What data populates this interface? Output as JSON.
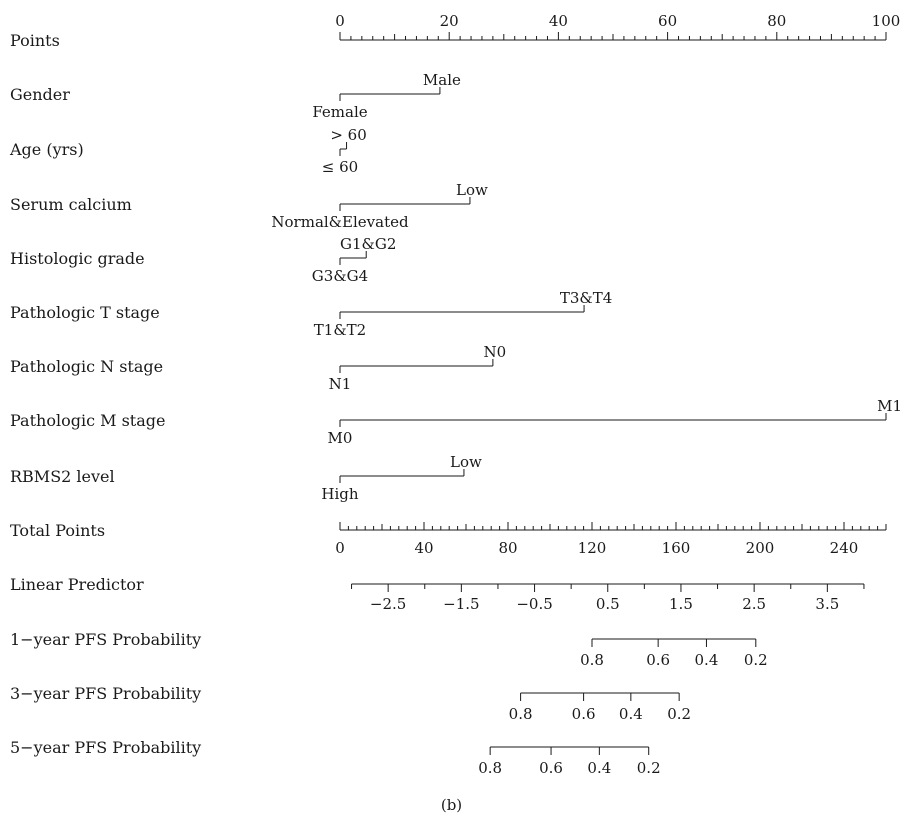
{
  "caption": "(b)",
  "chart_data": {
    "type": "nomogram",
    "points_axis": {
      "label": "Points",
      "range": [
        0,
        100
      ],
      "major_ticks": [
        0,
        20,
        40,
        60,
        80,
        100
      ],
      "minor_step": 2
    },
    "variables": [
      {
        "label": "Gender",
        "levels": [
          {
            "name": "Female",
            "points": 0,
            "side": "below"
          },
          {
            "name": "Male",
            "points": 18.3,
            "side": "above"
          }
        ]
      },
      {
        "label": "Age (yrs)",
        "levels": [
          {
            "name": "≤ 60",
            "points": 0,
            "side": "below"
          },
          {
            "name": "> 60",
            "points": 1.2,
            "side": "above"
          }
        ]
      },
      {
        "label": "Serum calcium",
        "levels": [
          {
            "name": "Normal&Elevated",
            "points": 0,
            "side": "below"
          },
          {
            "name": "Low",
            "points": 23.8,
            "side": "above"
          }
        ]
      },
      {
        "label": "Histologic grade",
        "levels": [
          {
            "name": "G3&G4",
            "points": 0,
            "side": "below"
          },
          {
            "name": "G1&G2",
            "points": 4.8,
            "side": "above"
          }
        ]
      },
      {
        "label": "Pathologic T stage",
        "levels": [
          {
            "name": "T1&T2",
            "points": 0,
            "side": "below"
          },
          {
            "name": "T3&T4",
            "points": 44.7,
            "side": "above"
          }
        ]
      },
      {
        "label": "Pathologic N stage",
        "levels": [
          {
            "name": "N1",
            "points": 0,
            "side": "below"
          },
          {
            "name": "N0",
            "points": 28.0,
            "side": "above"
          }
        ]
      },
      {
        "label": "Pathologic M stage",
        "levels": [
          {
            "name": "M0",
            "points": 0,
            "side": "below"
          },
          {
            "name": "M1",
            "points": 100,
            "side": "above"
          }
        ]
      },
      {
        "label": "RBMS2 level",
        "levels": [
          {
            "name": "High",
            "points": 0,
            "side": "below"
          },
          {
            "name": "Low",
            "points": 22.7,
            "side": "above"
          }
        ]
      }
    ],
    "total_points_axis": {
      "label": "Total Points",
      "range": [
        0,
        260
      ],
      "major_ticks": [
        0,
        40,
        80,
        120,
        160,
        200,
        240
      ],
      "minor_step": 4
    },
    "linear_predictor_axis": {
      "label": "Linear Predictor",
      "range": [
        -3.0,
        4.0
      ],
      "total_points_at_range": [
        5.5,
        249.5
      ],
      "major_ticks": [
        -2.5,
        -1.5,
        -0.5,
        0.5,
        1.5,
        2.5,
        3.5
      ],
      "tick_labels": [
        "−2.5",
        "−1.5",
        "−0.5",
        "0.5",
        "1.5",
        "2.5",
        "3.5"
      ],
      "minor_step": 0.5
    },
    "probability_axes": [
      {
        "label": "1−year PFS Probability",
        "ticks": [
          {
            "label": "0.8",
            "total_points": 120.0
          },
          {
            "label": "0.6",
            "total_points": 151.5
          },
          {
            "label": "0.4",
            "total_points": 174.5
          },
          {
            "label": "0.2",
            "total_points": 198.0
          }
        ]
      },
      {
        "label": "3−year PFS Probability",
        "ticks": [
          {
            "label": "0.8",
            "total_points": 86.0
          },
          {
            "label": "0.6",
            "total_points": 116.0
          },
          {
            "label": "0.4",
            "total_points": 138.5
          },
          {
            "label": "0.2",
            "total_points": 161.5
          }
        ]
      },
      {
        "label": "5−year PFS Probability",
        "ticks": [
          {
            "label": "0.8",
            "total_points": 71.5
          },
          {
            "label": "0.6",
            "total_points": 100.5
          },
          {
            "label": "0.4",
            "total_points": 123.5
          },
          {
            "label": "0.2",
            "total_points": 147.0
          }
        ]
      }
    ]
  }
}
